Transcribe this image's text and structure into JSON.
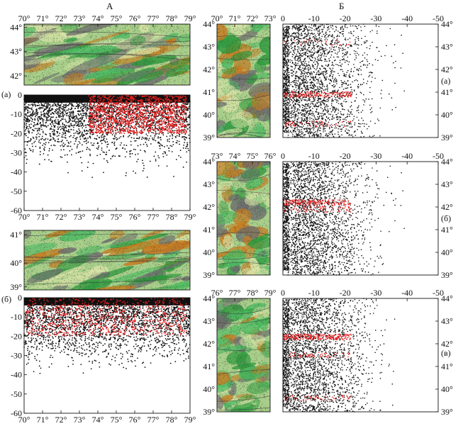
{
  "labels": {
    "part_a": "А",
    "part_b": "Б",
    "panel_a": "(а)",
    "panel_b": "(б)",
    "panel_v": "(в)"
  },
  "colors": {
    "points_black": "#111111",
    "points_red": "#e82020",
    "map_base": "#a8cf8a",
    "map_green": "#2f9a3e",
    "map_orange": "#c77a1e",
    "map_gray": "#6d6d6d"
  },
  "chart_data": [
    {
      "type": "scatter",
      "panel": "A-map-a",
      "x_ticks": [
        "70°",
        "71°",
        "72°",
        "73°",
        "74°",
        "75°",
        "76°",
        "77°",
        "78°",
        "79°"
      ],
      "y_ticks": [
        "44°",
        "43°",
        "42°"
      ],
      "xlim": [
        70,
        79
      ],
      "ylim": [
        41.5,
        44
      ]
    },
    {
      "type": "scatter",
      "panel": "A-depth-a",
      "x_ticks": [
        "70°",
        "71°",
        "72°",
        "73°",
        "74°",
        "75°",
        "76°",
        "77°",
        "78°",
        "79°"
      ],
      "y_ticks": [
        "0",
        "-10",
        "-20",
        "-30",
        "-40",
        "-50",
        "-60"
      ],
      "xlim": [
        70,
        79
      ],
      "ylim": [
        -60,
        0
      ]
    },
    {
      "type": "scatter",
      "panel": "A-map-b",
      "y_ticks": [
        "41°",
        "40°",
        "39°"
      ],
      "xlim": [
        70,
        79
      ],
      "ylim": [
        39,
        41.5
      ]
    },
    {
      "type": "scatter",
      "panel": "A-depth-b",
      "x_ticks": [
        "70°",
        "71°",
        "72°",
        "73°",
        "74°",
        "75°",
        "76°",
        "77°",
        "78°",
        "79°"
      ],
      "y_ticks": [
        "0",
        "-10",
        "-20",
        "-30",
        "-40",
        "-50",
        "-60"
      ],
      "xlim": [
        70,
        79
      ],
      "ylim": [
        -60,
        0
      ]
    },
    {
      "type": "scatter",
      "panel": "B-map-a",
      "x_ticks": [
        "70°",
        "71°",
        "72°",
        "73°"
      ],
      "xlim": [
        70,
        73
      ],
      "ylim": [
        39,
        44
      ]
    },
    {
      "type": "scatter",
      "panel": "B-map-b",
      "x_ticks": [
        "73°",
        "74°",
        "75°",
        "76°"
      ],
      "xlim": [
        73,
        76
      ],
      "ylim": [
        39,
        44
      ]
    },
    {
      "type": "scatter",
      "panel": "B-map-c",
      "x_ticks": [
        "76°",
        "77°",
        "78°",
        "79°"
      ],
      "xlim": [
        76,
        79
      ],
      "ylim": [
        39,
        44
      ]
    },
    {
      "type": "scatter",
      "panel": "B-depth-a",
      "x_ticks": [
        "0",
        "-10",
        "-20",
        "-30",
        "-40",
        "-50"
      ],
      "y_ticks": [
        "44°",
        "43°",
        "42°",
        "41°",
        "40°",
        "39°"
      ],
      "xlim": [
        0,
        -50
      ],
      "ylim": [
        39,
        44
      ]
    },
    {
      "type": "scatter",
      "panel": "B-depth-b",
      "x_ticks": [
        "0",
        "-10",
        "-20",
        "-30",
        "-40",
        "-50"
      ],
      "y_ticks": [
        "44°",
        "43°",
        "42°",
        "41°",
        "40°",
        "39°"
      ],
      "xlim": [
        0,
        -50
      ],
      "ylim": [
        39,
        44
      ]
    },
    {
      "type": "scatter",
      "panel": "B-depth-c",
      "x_ticks": [
        "0",
        "-10",
        "-20",
        "-30",
        "-40",
        "-50"
      ],
      "y_ticks": [
        "44°",
        "43°",
        "42°",
        "41°",
        "40°",
        "39°"
      ],
      "xlim": [
        0,
        -50
      ],
      "ylim": [
        39,
        44
      ]
    }
  ]
}
